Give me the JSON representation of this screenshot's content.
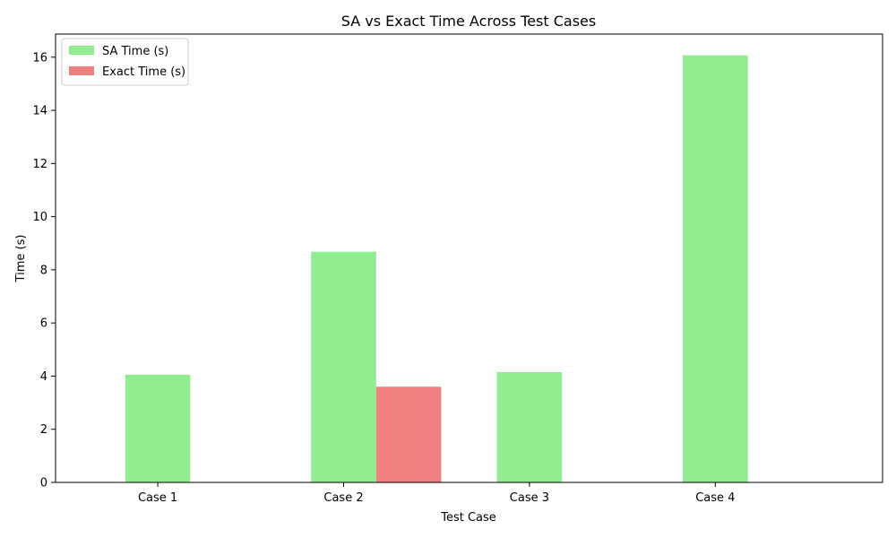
{
  "chart_data": {
    "type": "bar",
    "title": "SA vs Exact Time Across Test Cases",
    "xlabel": "Test Case",
    "ylabel": "Time (s)",
    "categories": [
      "Case 1",
      "Case 2",
      "Case 3",
      "Case 4"
    ],
    "series": [
      {
        "name": "SA Time (s)",
        "values": [
          4.05,
          8.68,
          4.15,
          16.07
        ],
        "color": "#90ee90"
      },
      {
        "name": "Exact Time (s)",
        "values": [
          0,
          3.6,
          0,
          0
        ],
        "color": "#f08080"
      }
    ],
    "ylim": [
      0,
      16.87
    ],
    "yticks": [
      0,
      2,
      4,
      6,
      8,
      10,
      12,
      14,
      16
    ],
    "legend": "top-left",
    "grid": false
  }
}
